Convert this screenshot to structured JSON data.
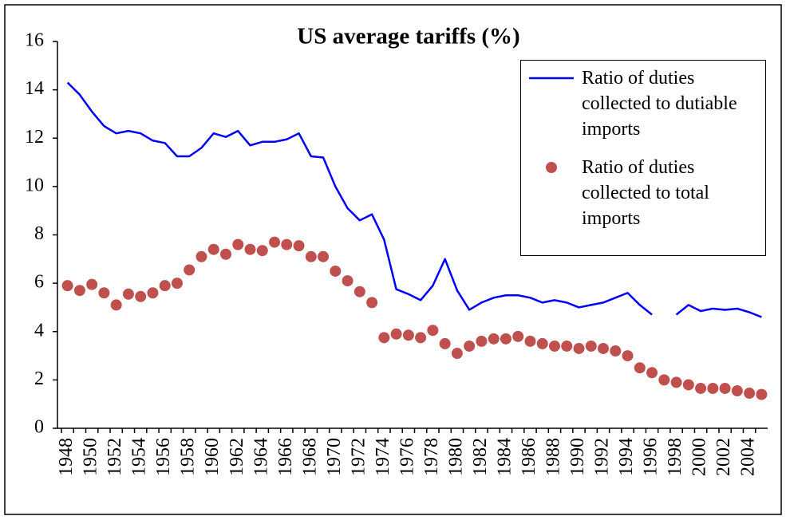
{
  "chart_data": {
    "type": "line",
    "title": "US average tariffs (%)",
    "categories": [
      "1948",
      null,
      "1950",
      null,
      "1952",
      null,
      "1954",
      null,
      "1956",
      null,
      "1958",
      null,
      "1960",
      null,
      "1962",
      null,
      "1964",
      null,
      "1966",
      null,
      "1968",
      null,
      "1970",
      null,
      "1972",
      null,
      "1974",
      null,
      "1976",
      null,
      "1978",
      null,
      "1980",
      null,
      "1982",
      null,
      "1984",
      null,
      "1986",
      null,
      "1988",
      null,
      "1990",
      null,
      "1992",
      null,
      "1994",
      null,
      "1996",
      null,
      "1998",
      null,
      "2000",
      null,
      "2002",
      null,
      "2004",
      null
    ],
    "series": [
      {
        "name": "Ratio of duties collected to dutiable imports",
        "color": "#0000ff",
        "mode": "line",
        "values": [
          14.3,
          13.8,
          13.1,
          12.5,
          12.2,
          12.3,
          12.2,
          11.9,
          11.8,
          11.25,
          11.25,
          11.6,
          12.2,
          12.05,
          12.3,
          11.7,
          11.85,
          11.85,
          11.95,
          12.2,
          11.25,
          11.2,
          10.0,
          9.1,
          8.6,
          8.85,
          7.8,
          5.75,
          5.55,
          5.3,
          5.9,
          7.0,
          5.7,
          4.9,
          5.2,
          5.4,
          5.5,
          5.5,
          5.4,
          5.2,
          5.3,
          5.2,
          5.0,
          5.1,
          5.2,
          5.4,
          5.6,
          5.1,
          4.7,
          null,
          4.7,
          5.1,
          4.85,
          4.95,
          4.9,
          4.95,
          4.8,
          4.6
        ]
      },
      {
        "name": "Ratio of duties collected to total imports",
        "color": "#c0504d",
        "mode": "markers",
        "values": [
          5.9,
          5.7,
          5.95,
          5.6,
          5.1,
          5.55,
          5.45,
          5.6,
          5.9,
          6.0,
          6.55,
          7.1,
          7.4,
          7.2,
          7.6,
          7.4,
          7.35,
          7.7,
          7.6,
          7.55,
          7.1,
          7.1,
          6.5,
          6.1,
          5.65,
          5.2,
          3.75,
          3.9,
          3.85,
          3.75,
          4.05,
          3.5,
          3.1,
          3.4,
          3.6,
          3.7,
          3.7,
          3.8,
          3.6,
          3.5,
          3.4,
          3.4,
          3.3,
          3.4,
          3.3,
          3.2,
          3.0,
          2.5,
          2.3,
          2.0,
          1.9,
          1.8,
          1.65,
          1.65,
          1.65,
          1.55,
          1.45,
          1.4
        ]
      }
    ],
    "ylim": [
      0,
      16
    ],
    "yticks": [
      0,
      2,
      4,
      6,
      8,
      10,
      12,
      14,
      16
    ],
    "legend": "upper right"
  }
}
